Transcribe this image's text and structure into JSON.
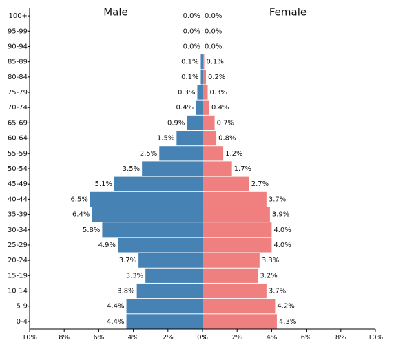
{
  "chart_data": {
    "type": "pyramid",
    "categories": [
      "100+",
      "95-99",
      "90-94",
      "85-89",
      "80-84",
      "75-79",
      "70-74",
      "65-69",
      "60-64",
      "55-59",
      "50-54",
      "45-49",
      "40-44",
      "35-39",
      "30-34",
      "25-29",
      "20-24",
      "15-19",
      "10-14",
      "5-9",
      "0-4"
    ],
    "series": [
      {
        "name": "Male",
        "color": "#4682b4",
        "values": [
          0.0,
          0.0,
          0.0,
          0.1,
          0.1,
          0.3,
          0.4,
          0.9,
          1.5,
          2.5,
          3.5,
          5.1,
          6.5,
          6.4,
          5.8,
          4.9,
          3.7,
          3.3,
          3.8,
          4.4,
          4.4
        ],
        "value_labels": [
          "0.0%",
          "0.0%",
          "0.0%",
          "0.1%",
          "0.1%",
          "0.3%",
          "0.4%",
          "0.9%",
          "1.5%",
          "2.5%",
          "3.5%",
          "5.1%",
          "6.5%",
          "6.4%",
          "5.8%",
          "4.9%",
          "3.7%",
          "3.3%",
          "3.8%",
          "4.4%",
          "4.4%"
        ]
      },
      {
        "name": "Female",
        "color": "#f08080",
        "values": [
          0.0,
          0.0,
          0.0,
          0.1,
          0.2,
          0.3,
          0.4,
          0.7,
          0.8,
          1.2,
          1.7,
          2.7,
          3.7,
          3.9,
          4.0,
          4.0,
          3.3,
          3.2,
          3.7,
          4.2,
          4.3
        ],
        "value_labels": [
          "0.0%",
          "0.0%",
          "0.0%",
          "0.1%",
          "0.2%",
          "0.3%",
          "0.4%",
          "0.7%",
          "0.8%",
          "1.2%",
          "1.7%",
          "2.7%",
          "3.7%",
          "3.9%",
          "4.0%",
          "4.0%",
          "3.3%",
          "3.2%",
          "3.7%",
          "4.2%",
          "4.3%"
        ]
      }
    ],
    "xlim": [
      0,
      10
    ],
    "xticks_left": [
      {
        "value": 10,
        "label": "10%"
      },
      {
        "value": 8,
        "label": "8%"
      },
      {
        "value": 6,
        "label": "6%"
      },
      {
        "value": 4,
        "label": "4%"
      },
      {
        "value": 2,
        "label": "2%"
      },
      {
        "value": 0,
        "label": "0%"
      }
    ],
    "xticks_right": [
      {
        "value": 0,
        "label": "0%"
      },
      {
        "value": 2,
        "label": "2%"
      },
      {
        "value": 4,
        "label": "4%"
      },
      {
        "value": 6,
        "label": "6%"
      },
      {
        "value": 8,
        "label": "8%"
      },
      {
        "value": 10,
        "label": "10%"
      }
    ]
  }
}
